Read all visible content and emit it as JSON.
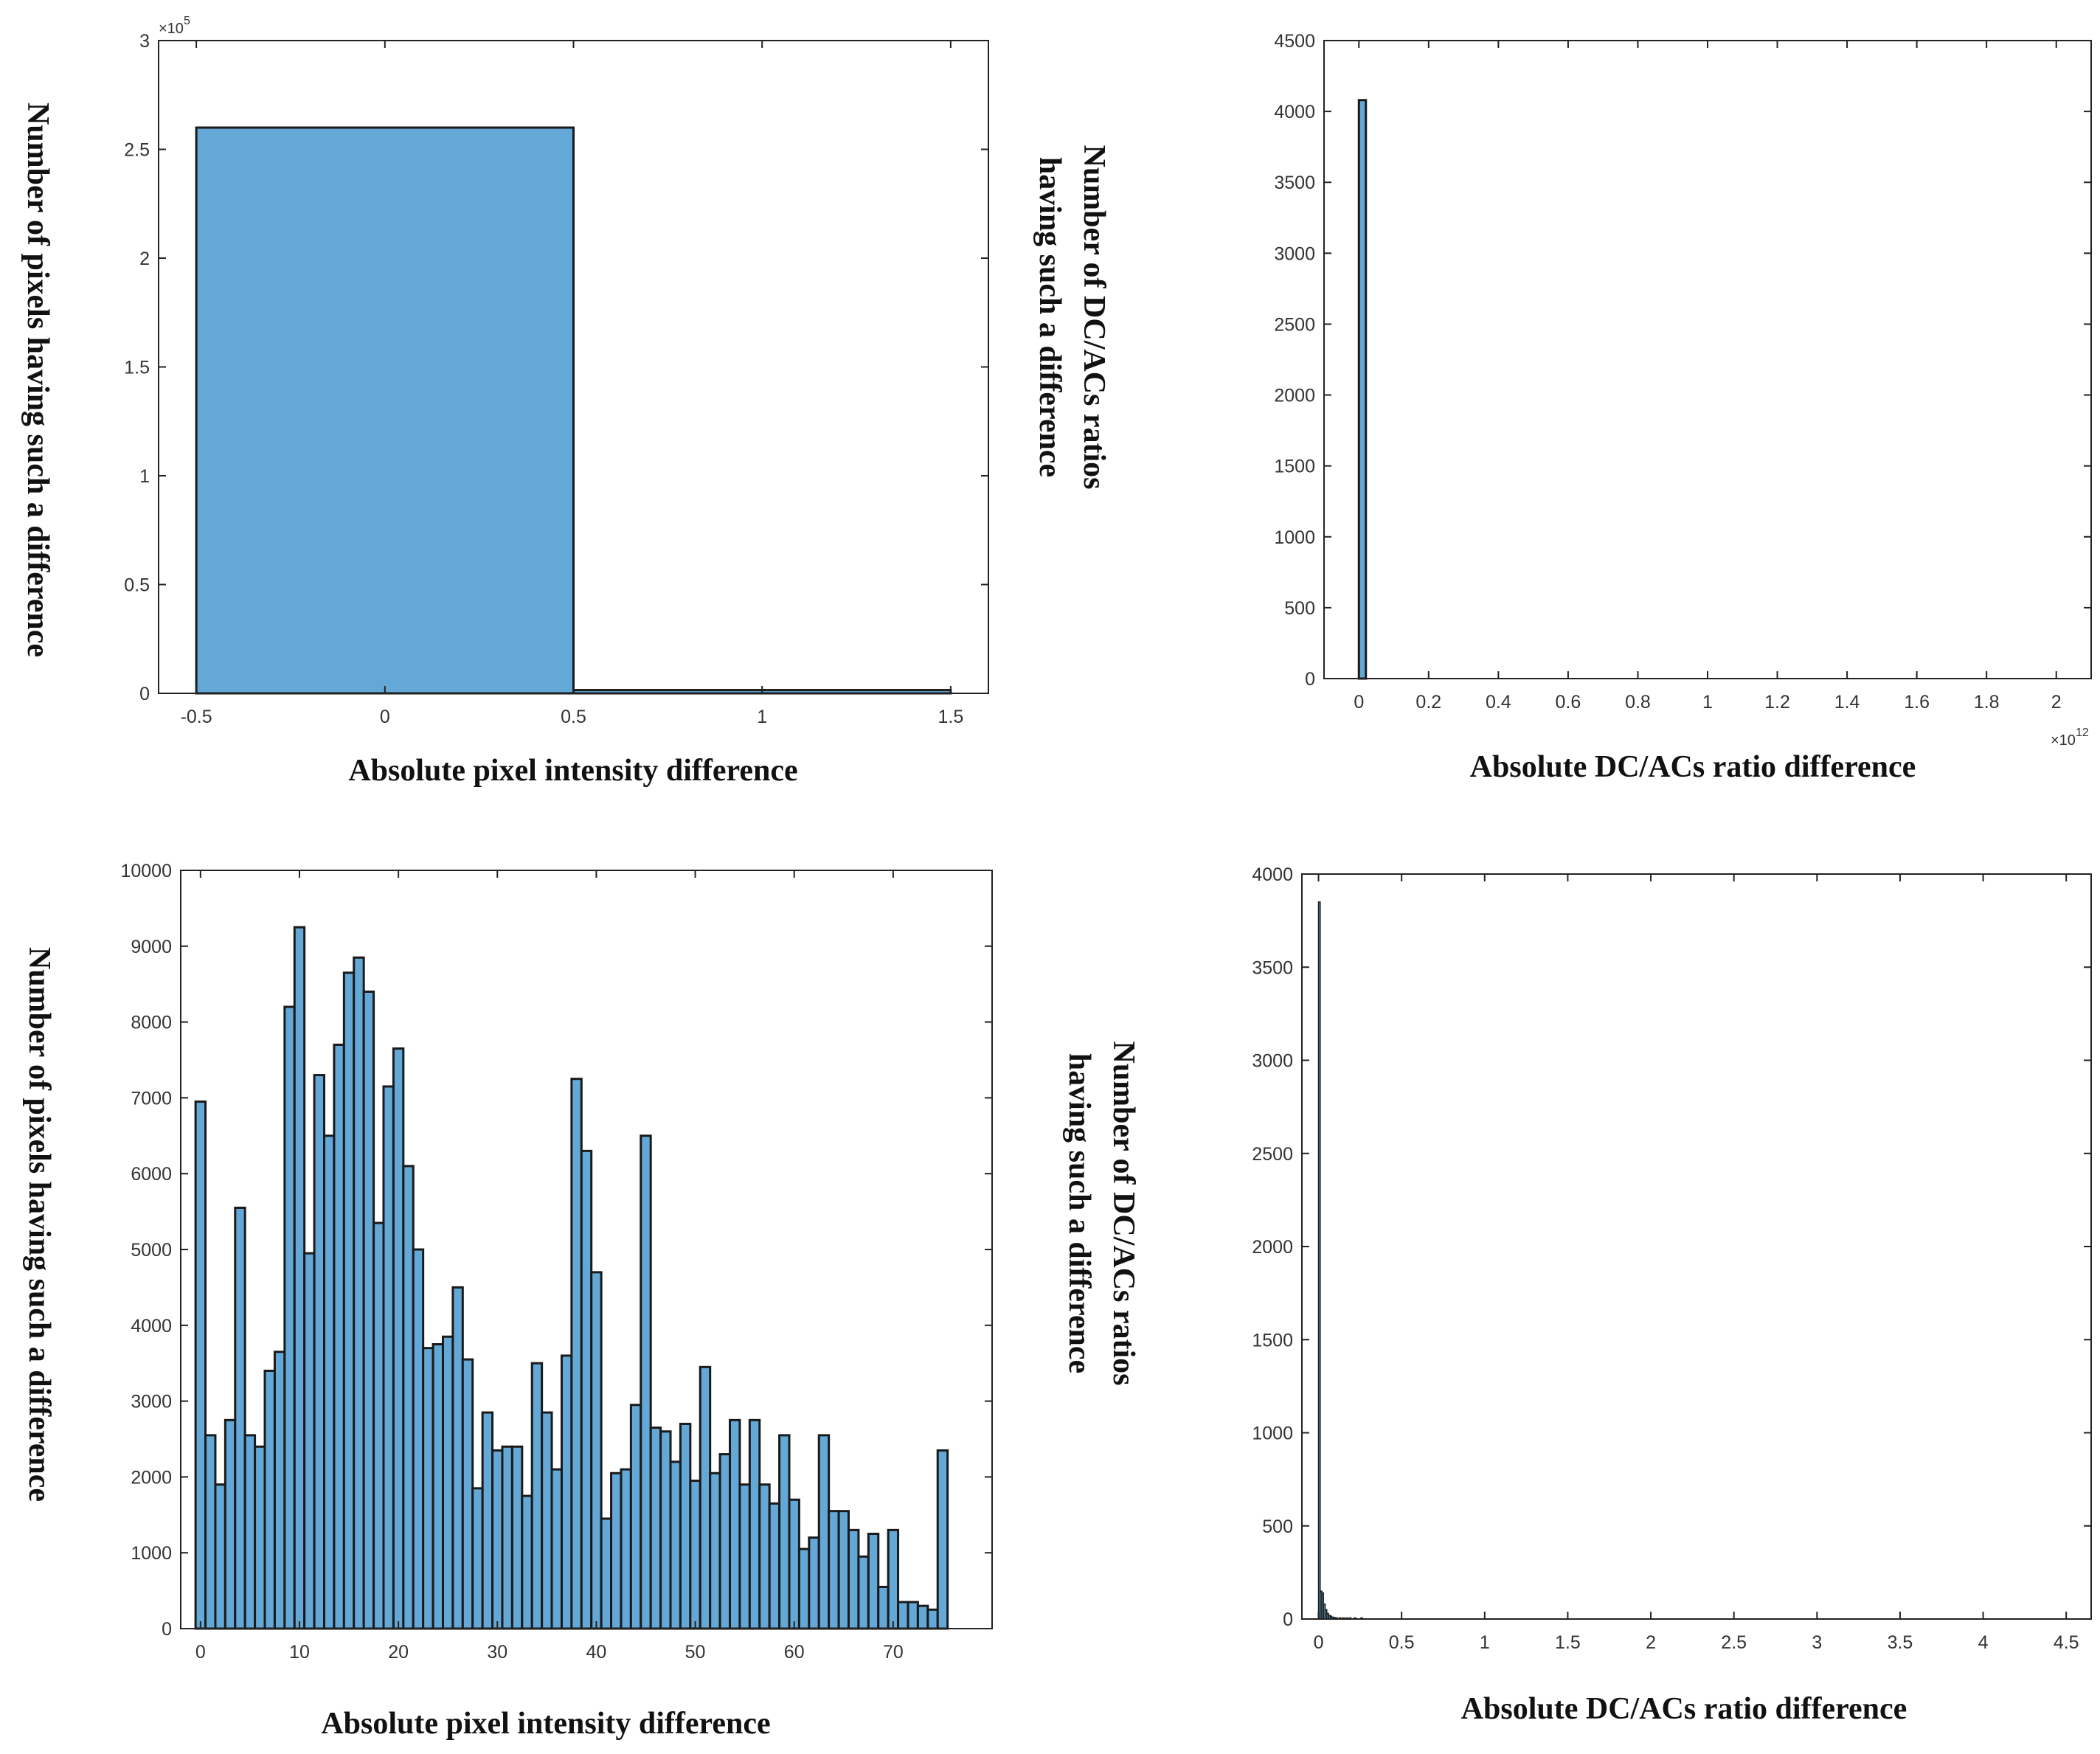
{
  "colors": {
    "bar_fill": "#63a8d6",
    "bar_edge": "#1a1a1a",
    "axes": "#222222"
  },
  "chart_data": [
    {
      "id": "top-left",
      "type": "bar",
      "x": [
        0,
        1
      ],
      "values": [
        260000,
        1500
      ],
      "bin_width": 1,
      "xlim": [
        -0.6,
        1.6
      ],
      "ylim": [
        0,
        300000
      ],
      "xticks": [
        -0.5,
        0,
        0.5,
        1,
        1.5
      ],
      "xtick_labels": [
        "-0.5",
        "0",
        "0.5",
        "1",
        "1.5"
      ],
      "yticks": [
        0,
        50000,
        100000,
        150000,
        200000,
        250000,
        300000
      ],
      "ytick_labels": [
        "0",
        "0.5",
        "1",
        "1.5",
        "2",
        "2.5",
        "3"
      ],
      "multiplier_base": "×10",
      "multiplier_exp": "5",
      "multiplier_position": "top-left",
      "xlabel": "Absolute pixel intensity difference",
      "ylabel": [
        "Number of pixels having such a difference"
      ]
    },
    {
      "id": "top-right",
      "type": "bar",
      "x": [
        0.01
      ],
      "values": [
        4080
      ],
      "bin_width": 0.02,
      "xlim": [
        -0.1,
        2.1
      ],
      "ylim": [
        0,
        4500
      ],
      "xticks": [
        0,
        0.2,
        0.4,
        0.6,
        0.8,
        1,
        1.2,
        1.4,
        1.6,
        1.8,
        2
      ],
      "xtick_labels": [
        "0",
        "0.2",
        "0.4",
        "0.6",
        "0.8",
        "1",
        "1.2",
        "1.4",
        "1.6",
        "1.8",
        "2"
      ],
      "yticks": [
        0,
        500,
        1000,
        1500,
        2000,
        2500,
        3000,
        3500,
        4000,
        4500
      ],
      "ytick_labels": [
        "0",
        "500",
        "1000",
        "1500",
        "2000",
        "2500",
        "3000",
        "3500",
        "4000",
        "4500"
      ],
      "multiplier_base": "×10",
      "multiplier_exp": "12",
      "multiplier_position": "bottom-right",
      "xlabel": "Absolute DC/ACs ratio difference",
      "ylabel": [
        "Number of DC/ACs ratios",
        "having such a difference"
      ]
    },
    {
      "id": "bottom-left",
      "type": "bar",
      "x": [
        0,
        1,
        2,
        3,
        4,
        5,
        6,
        7,
        8,
        9,
        10,
        11,
        12,
        13,
        14,
        15,
        16,
        17,
        18,
        19,
        20,
        21,
        22,
        23,
        24,
        25,
        26,
        27,
        28,
        29,
        30,
        31,
        32,
        33,
        34,
        35,
        36,
        37,
        38,
        39,
        40,
        41,
        42,
        43,
        44,
        45,
        46,
        47,
        48,
        49,
        50,
        51,
        52,
        53,
        54,
        55,
        56,
        57,
        58,
        59,
        60,
        61,
        62,
        63,
        64,
        65,
        66,
        67,
        68,
        69,
        70,
        71,
        72,
        73,
        74,
        75
      ],
      "values": [
        6950,
        2550,
        1900,
        2750,
        5550,
        2550,
        2400,
        3400,
        3650,
        8200,
        9250,
        4950,
        7300,
        6500,
        7700,
        8650,
        8850,
        8400,
        5350,
        7150,
        7650,
        6100,
        5000,
        3700,
        3750,
        3850,
        4500,
        3550,
        1850,
        2850,
        2350,
        2400,
        2400,
        1750,
        3500,
        2850,
        2100,
        3600,
        7250,
        6300,
        4700,
        1450,
        2050,
        2100,
        2950,
        6500,
        2650,
        2600,
        2200,
        2700,
        1950,
        3450,
        2050,
        2300,
        2750,
        1900,
        2750,
        1900,
        1650,
        2550,
        1700,
        1050,
        1200,
        2550,
        1550,
        1550,
        1300,
        950,
        1250,
        550,
        1300,
        350,
        350,
        300,
        250,
        2350
      ],
      "bin_width": 1,
      "xlim": [
        -2,
        80
      ],
      "ylim": [
        0,
        10000
      ],
      "xticks": [
        0,
        10,
        20,
        30,
        40,
        50,
        60,
        70
      ],
      "xtick_labels": [
        "0",
        "10",
        "20",
        "30",
        "40",
        "50",
        "60",
        "70"
      ],
      "yticks": [
        0,
        1000,
        2000,
        3000,
        4000,
        5000,
        6000,
        7000,
        8000,
        9000,
        10000
      ],
      "ytick_labels": [
        "0",
        "1000",
        "2000",
        "3000",
        "4000",
        "5000",
        "6000",
        "7000",
        "8000",
        "9000",
        "10000"
      ],
      "xlabel": "Absolute pixel intensity difference",
      "ylabel": [
        "Number of pixels having such a difference"
      ]
    },
    {
      "id": "bottom-right",
      "type": "bar",
      "x": [
        0.005,
        0.015,
        0.025,
        0.035,
        0.045,
        0.055,
        0.065,
        0.075,
        0.085,
        0.095,
        0.11,
        0.13,
        0.15,
        0.17,
        0.19,
        0.22,
        0.26
      ],
      "values": [
        3850,
        150,
        140,
        80,
        50,
        30,
        20,
        15,
        10,
        8,
        6,
        5,
        4,
        3,
        3,
        2,
        2
      ],
      "bin_width": 0.01,
      "xlim": [
        -0.1,
        4.65
      ],
      "ylim": [
        0,
        4000
      ],
      "xticks": [
        0,
        0.5,
        1,
        1.5,
        2,
        2.5,
        3,
        3.5,
        4,
        4.5
      ],
      "xtick_labels": [
        "0",
        "0.5",
        "1",
        "1.5",
        "2",
        "2.5",
        "3",
        "3.5",
        "4",
        "4.5"
      ],
      "yticks": [
        0,
        500,
        1000,
        1500,
        2000,
        2500,
        3000,
        3500,
        4000
      ],
      "ytick_labels": [
        "0",
        "500",
        "1000",
        "1500",
        "2000",
        "2500",
        "3000",
        "3500",
        "4000"
      ],
      "xlabel": "Absolute DC/ACs ratio difference",
      "ylabel": [
        "Number of DC/ACs ratios",
        "having such a difference"
      ]
    }
  ]
}
